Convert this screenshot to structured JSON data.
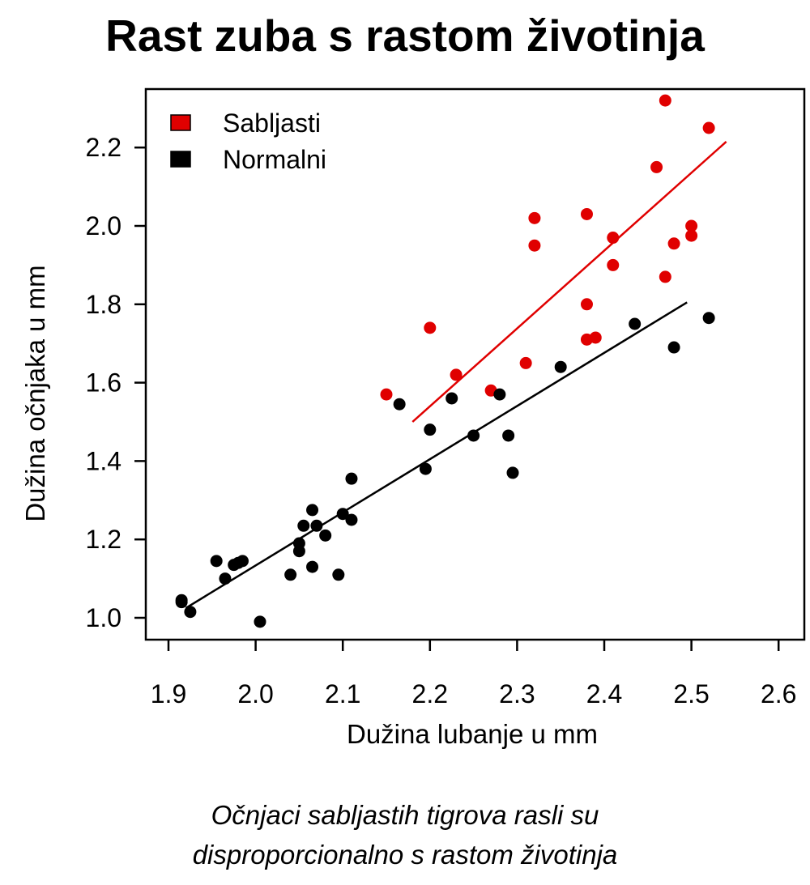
{
  "chart_data": {
    "type": "scatter",
    "title": "Rast zuba s rastom životinja",
    "xlabel": "Dužina lubanje u mm",
    "ylabel": "Dužina očnjaka u mm",
    "xlim": [
      1.86,
      2.61
    ],
    "ylim": [
      0.95,
      2.35
    ],
    "xticks": [
      "1.9",
      "2.0",
      "2.1",
      "2.2",
      "2.3",
      "2.4",
      "2.5",
      "2.6"
    ],
    "yticks": [
      "1.0",
      "1.2",
      "1.4",
      "1.6",
      "1.8",
      "2.0",
      "2.2"
    ],
    "grid": false,
    "legend_position": "top-left",
    "series": [
      {
        "name": "Sabljasti",
        "color": "#e00000",
        "points": [
          [
            2.15,
            1.57
          ],
          [
            2.2,
            1.74
          ],
          [
            2.23,
            1.62
          ],
          [
            2.27,
            1.58
          ],
          [
            2.31,
            1.65
          ],
          [
            2.32,
            1.95
          ],
          [
            2.32,
            2.02
          ],
          [
            2.38,
            2.03
          ],
          [
            2.38,
            1.8
          ],
          [
            2.38,
            1.71
          ],
          [
            2.39,
            1.715
          ],
          [
            2.41,
            1.9
          ],
          [
            2.41,
            1.97
          ],
          [
            2.46,
            2.15
          ],
          [
            2.47,
            2.32
          ],
          [
            2.47,
            1.87
          ],
          [
            2.48,
            1.955
          ],
          [
            2.5,
            2.0
          ],
          [
            2.5,
            1.975
          ],
          [
            2.52,
            2.25
          ]
        ],
        "fit": [
          [
            2.18,
            1.5
          ],
          [
            2.54,
            2.215
          ]
        ]
      },
      {
        "name": "Normalni",
        "color": "#000000",
        "points": [
          [
            1.915,
            1.04
          ],
          [
            1.915,
            1.045
          ],
          [
            1.925,
            1.015
          ],
          [
            1.955,
            1.145
          ],
          [
            1.965,
            1.1
          ],
          [
            1.975,
            1.135
          ],
          [
            1.98,
            1.14
          ],
          [
            1.985,
            1.145
          ],
          [
            2.005,
            0.99
          ],
          [
            2.04,
            1.11
          ],
          [
            2.05,
            1.17
          ],
          [
            2.05,
            1.19
          ],
          [
            2.055,
            1.235
          ],
          [
            2.065,
            1.275
          ],
          [
            2.065,
            1.13
          ],
          [
            2.07,
            1.235
          ],
          [
            2.08,
            1.21
          ],
          [
            2.095,
            1.11
          ],
          [
            2.1,
            1.265
          ],
          [
            2.11,
            1.25
          ],
          [
            2.11,
            1.355
          ],
          [
            2.165,
            1.545
          ],
          [
            2.195,
            1.38
          ],
          [
            2.2,
            1.48
          ],
          [
            2.225,
            1.56
          ],
          [
            2.25,
            1.465
          ],
          [
            2.28,
            1.57
          ],
          [
            2.29,
            1.465
          ],
          [
            2.295,
            1.37
          ],
          [
            2.35,
            1.64
          ],
          [
            2.435,
            1.75
          ],
          [
            2.48,
            1.69
          ],
          [
            2.52,
            1.765
          ]
        ],
        "fit": [
          [
            1.92,
            1.025
          ],
          [
            2.495,
            1.805
          ]
        ]
      }
    ]
  },
  "caption_line1": "Očnjaci sabljastih tigrova rasli su",
  "caption_line2": "disproporcionalno s rastom životinja"
}
